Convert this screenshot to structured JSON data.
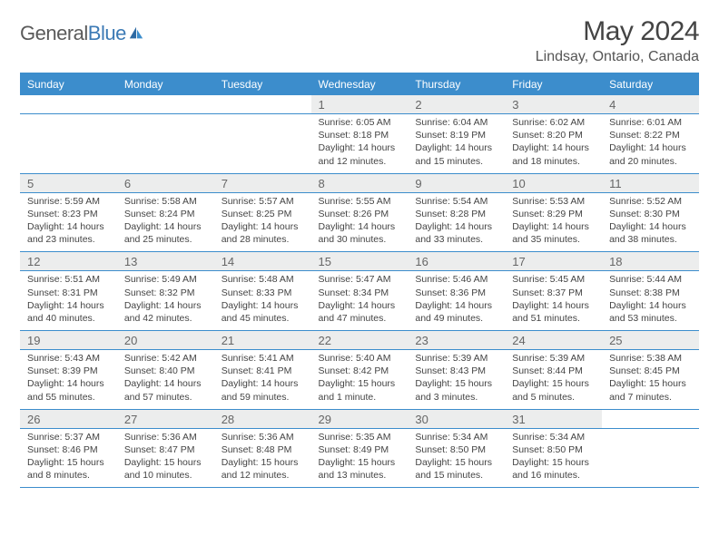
{
  "brand": {
    "word1": "General",
    "word2": "Blue"
  },
  "title": "May 2024",
  "location": "Lindsay, Ontario, Canada",
  "colors": {
    "header_bg": "#3c8dcc",
    "header_fg": "#ffffff",
    "daynum_bg": "#eceded",
    "rule": "#3c8dcc"
  },
  "day_headers": [
    "Sunday",
    "Monday",
    "Tuesday",
    "Wednesday",
    "Thursday",
    "Friday",
    "Saturday"
  ],
  "weeks": [
    [
      null,
      null,
      null,
      {
        "n": "1",
        "sr": "6:05 AM",
        "ss": "8:18 PM",
        "dl": "14 hours and 12 minutes."
      },
      {
        "n": "2",
        "sr": "6:04 AM",
        "ss": "8:19 PM",
        "dl": "14 hours and 15 minutes."
      },
      {
        "n": "3",
        "sr": "6:02 AM",
        "ss": "8:20 PM",
        "dl": "14 hours and 18 minutes."
      },
      {
        "n": "4",
        "sr": "6:01 AM",
        "ss": "8:22 PM",
        "dl": "14 hours and 20 minutes."
      }
    ],
    [
      {
        "n": "5",
        "sr": "5:59 AM",
        "ss": "8:23 PM",
        "dl": "14 hours and 23 minutes."
      },
      {
        "n": "6",
        "sr": "5:58 AM",
        "ss": "8:24 PM",
        "dl": "14 hours and 25 minutes."
      },
      {
        "n": "7",
        "sr": "5:57 AM",
        "ss": "8:25 PM",
        "dl": "14 hours and 28 minutes."
      },
      {
        "n": "8",
        "sr": "5:55 AM",
        "ss": "8:26 PM",
        "dl": "14 hours and 30 minutes."
      },
      {
        "n": "9",
        "sr": "5:54 AM",
        "ss": "8:28 PM",
        "dl": "14 hours and 33 minutes."
      },
      {
        "n": "10",
        "sr": "5:53 AM",
        "ss": "8:29 PM",
        "dl": "14 hours and 35 minutes."
      },
      {
        "n": "11",
        "sr": "5:52 AM",
        "ss": "8:30 PM",
        "dl": "14 hours and 38 minutes."
      }
    ],
    [
      {
        "n": "12",
        "sr": "5:51 AM",
        "ss": "8:31 PM",
        "dl": "14 hours and 40 minutes."
      },
      {
        "n": "13",
        "sr": "5:49 AM",
        "ss": "8:32 PM",
        "dl": "14 hours and 42 minutes."
      },
      {
        "n": "14",
        "sr": "5:48 AM",
        "ss": "8:33 PM",
        "dl": "14 hours and 45 minutes."
      },
      {
        "n": "15",
        "sr": "5:47 AM",
        "ss": "8:34 PM",
        "dl": "14 hours and 47 minutes."
      },
      {
        "n": "16",
        "sr": "5:46 AM",
        "ss": "8:36 PM",
        "dl": "14 hours and 49 minutes."
      },
      {
        "n": "17",
        "sr": "5:45 AM",
        "ss": "8:37 PM",
        "dl": "14 hours and 51 minutes."
      },
      {
        "n": "18",
        "sr": "5:44 AM",
        "ss": "8:38 PM",
        "dl": "14 hours and 53 minutes."
      }
    ],
    [
      {
        "n": "19",
        "sr": "5:43 AM",
        "ss": "8:39 PM",
        "dl": "14 hours and 55 minutes."
      },
      {
        "n": "20",
        "sr": "5:42 AM",
        "ss": "8:40 PM",
        "dl": "14 hours and 57 minutes."
      },
      {
        "n": "21",
        "sr": "5:41 AM",
        "ss": "8:41 PM",
        "dl": "14 hours and 59 minutes."
      },
      {
        "n": "22",
        "sr": "5:40 AM",
        "ss": "8:42 PM",
        "dl": "15 hours and 1 minute."
      },
      {
        "n": "23",
        "sr": "5:39 AM",
        "ss": "8:43 PM",
        "dl": "15 hours and 3 minutes."
      },
      {
        "n": "24",
        "sr": "5:39 AM",
        "ss": "8:44 PM",
        "dl": "15 hours and 5 minutes."
      },
      {
        "n": "25",
        "sr": "5:38 AM",
        "ss": "8:45 PM",
        "dl": "15 hours and 7 minutes."
      }
    ],
    [
      {
        "n": "26",
        "sr": "5:37 AM",
        "ss": "8:46 PM",
        "dl": "15 hours and 8 minutes."
      },
      {
        "n": "27",
        "sr": "5:36 AM",
        "ss": "8:47 PM",
        "dl": "15 hours and 10 minutes."
      },
      {
        "n": "28",
        "sr": "5:36 AM",
        "ss": "8:48 PM",
        "dl": "15 hours and 12 minutes."
      },
      {
        "n": "29",
        "sr": "5:35 AM",
        "ss": "8:49 PM",
        "dl": "15 hours and 13 minutes."
      },
      {
        "n": "30",
        "sr": "5:34 AM",
        "ss": "8:50 PM",
        "dl": "15 hours and 15 minutes."
      },
      {
        "n": "31",
        "sr": "5:34 AM",
        "ss": "8:50 PM",
        "dl": "15 hours and 16 minutes."
      },
      null
    ]
  ],
  "labels": {
    "sunrise": "Sunrise:",
    "sunset": "Sunset:",
    "daylight": "Daylight:"
  }
}
